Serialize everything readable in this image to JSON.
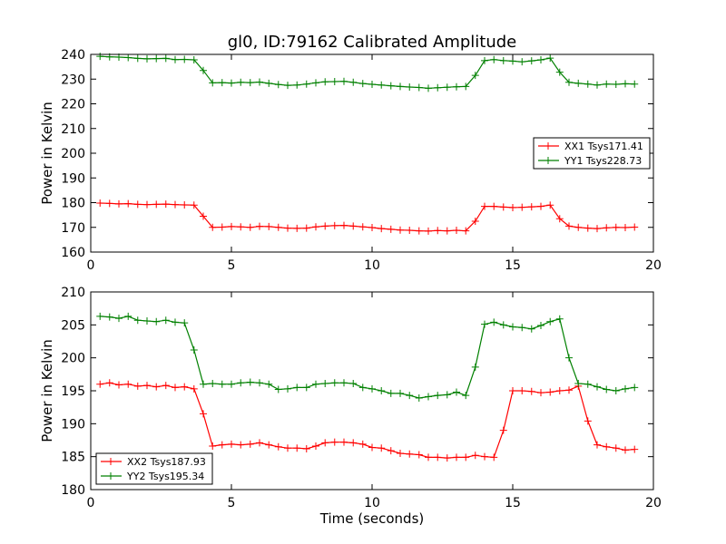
{
  "title": "gl0, ID:79162 Calibrated Amplitude",
  "chart_data": [
    {
      "type": "line",
      "title": "gl0, ID:79162 Calibrated Amplitude",
      "xlabel": "",
      "ylabel": "Power in Kelvin",
      "xlim": [
        0,
        20
      ],
      "ylim": [
        160,
        240
      ],
      "xticks": [
        "0",
        "5",
        "10",
        "15",
        "20"
      ],
      "yticks": [
        "160",
        "170",
        "180",
        "190",
        "200",
        "210",
        "220",
        "230",
        "240"
      ],
      "grid": false,
      "legend_position": "right",
      "x": [
        0.33,
        0.67,
        1.0,
        1.33,
        1.67,
        2.0,
        2.33,
        2.67,
        3.0,
        3.33,
        3.67,
        4.0,
        4.33,
        4.67,
        5.0,
        5.33,
        5.67,
        6.0,
        6.33,
        6.67,
        7.0,
        7.33,
        7.67,
        8.0,
        8.33,
        8.67,
        9.0,
        9.33,
        9.67,
        10.0,
        10.33,
        10.67,
        11.0,
        11.33,
        11.67,
        12.0,
        12.33,
        12.67,
        13.0,
        13.33,
        13.67,
        14.0,
        14.33,
        14.67,
        15.0,
        15.33,
        15.67,
        16.0,
        16.33,
        16.67,
        17.0,
        17.33,
        17.67,
        18.0,
        18.33,
        18.67,
        19.0,
        19.33
      ],
      "series": [
        {
          "name": "XX1 Tsys171.41",
          "color": "#ff0000",
          "values": [
            179.8,
            179.7,
            179.5,
            179.6,
            179.3,
            179.2,
            179.3,
            179.4,
            179.2,
            179.1,
            179.0,
            174.5,
            170.0,
            170.1,
            170.3,
            170.2,
            170.0,
            170.4,
            170.3,
            170.0,
            169.7,
            169.6,
            169.7,
            170.2,
            170.5,
            170.7,
            170.8,
            170.5,
            170.2,
            169.9,
            169.5,
            169.2,
            168.9,
            168.8,
            168.6,
            168.5,
            168.7,
            168.6,
            168.8,
            168.6,
            172.5,
            178.5,
            178.5,
            178.2,
            178.0,
            178.1,
            178.3,
            178.5,
            179.0,
            173.5,
            170.5,
            170.0,
            169.7,
            169.5,
            169.8,
            170.0,
            169.9,
            170.1
          ]
        },
        {
          "name": "YY1 Tsys228.73",
          "color": "#008000",
          "values": [
            239.2,
            239.0,
            238.9,
            238.7,
            238.4,
            238.2,
            238.3,
            238.4,
            237.9,
            238.0,
            237.8,
            233.5,
            228.5,
            228.6,
            228.4,
            228.7,
            228.6,
            228.8,
            228.3,
            227.8,
            227.5,
            227.6,
            228.0,
            228.5,
            228.9,
            229.0,
            229.1,
            228.7,
            228.2,
            227.9,
            227.6,
            227.3,
            227.0,
            226.8,
            226.6,
            226.3,
            226.5,
            226.7,
            226.9,
            227.0,
            231.5,
            237.5,
            237.9,
            237.5,
            237.3,
            237.0,
            237.4,
            237.8,
            238.5,
            232.8,
            228.7,
            228.3,
            228.0,
            227.6,
            228.0,
            227.9,
            228.1,
            228.0
          ]
        }
      ]
    },
    {
      "type": "line",
      "title": "",
      "xlabel": "Time (seconds)",
      "ylabel": "Power in Kelvin",
      "xlim": [
        0,
        20
      ],
      "ylim": [
        180,
        210
      ],
      "xticks": [
        "0",
        "5",
        "10",
        "15",
        "20"
      ],
      "yticks": [
        "180",
        "185",
        "190",
        "195",
        "200",
        "205",
        "210"
      ],
      "grid": false,
      "legend_position": "lower-left",
      "x": [
        0.33,
        0.67,
        1.0,
        1.33,
        1.67,
        2.0,
        2.33,
        2.67,
        3.0,
        3.33,
        3.67,
        4.0,
        4.33,
        4.67,
        5.0,
        5.33,
        5.67,
        6.0,
        6.33,
        6.67,
        7.0,
        7.33,
        7.67,
        8.0,
        8.33,
        8.67,
        9.0,
        9.33,
        9.67,
        10.0,
        10.33,
        10.67,
        11.0,
        11.33,
        11.67,
        12.0,
        12.33,
        12.67,
        13.0,
        13.33,
        13.67,
        14.0,
        14.33,
        14.67,
        15.0,
        15.33,
        15.67,
        16.0,
        16.33,
        16.67,
        17.0,
        17.33,
        17.67,
        18.0,
        18.33,
        18.67,
        19.0,
        19.33
      ],
      "series": [
        {
          "name": "XX2 Tsys187.93",
          "color": "#ff0000",
          "values": [
            196.0,
            196.2,
            195.9,
            196.0,
            195.7,
            195.8,
            195.6,
            195.8,
            195.5,
            195.6,
            195.3,
            191.5,
            186.6,
            186.8,
            186.9,
            186.8,
            186.9,
            187.1,
            186.8,
            186.5,
            186.3,
            186.3,
            186.2,
            186.6,
            187.1,
            187.2,
            187.2,
            187.1,
            186.9,
            186.4,
            186.3,
            185.9,
            185.5,
            185.4,
            185.3,
            184.9,
            184.9,
            184.8,
            184.9,
            184.9,
            185.2,
            185.0,
            184.9,
            189.0,
            195.0,
            195.0,
            194.9,
            194.7,
            194.8,
            195.0,
            195.1,
            195.7,
            190.4,
            186.8,
            186.5,
            186.3,
            186.0,
            186.1
          ],
          "values_note": ""
        },
        {
          "name": "YY2 Tsys195.34",
          "color": "#008000",
          "values": [
            206.3,
            206.2,
            206.0,
            206.3,
            205.7,
            205.6,
            205.5,
            205.7,
            205.4,
            205.3,
            201.2,
            196.0,
            196.1,
            196.0,
            196.0,
            196.2,
            196.3,
            196.2,
            196.0,
            195.2,
            195.3,
            195.5,
            195.5,
            196.0,
            196.1,
            196.2,
            196.2,
            196.1,
            195.5,
            195.3,
            195.0,
            194.6,
            194.6,
            194.3,
            193.9,
            194.1,
            194.3,
            194.4,
            194.8,
            194.3,
            198.6,
            205.1,
            205.4,
            205.0,
            204.7,
            204.6,
            204.4,
            204.9,
            205.5,
            205.9,
            200.0,
            196.1,
            196.0,
            195.6,
            195.2,
            195.0,
            195.3,
            195.5
          ]
        }
      ]
    }
  ]
}
